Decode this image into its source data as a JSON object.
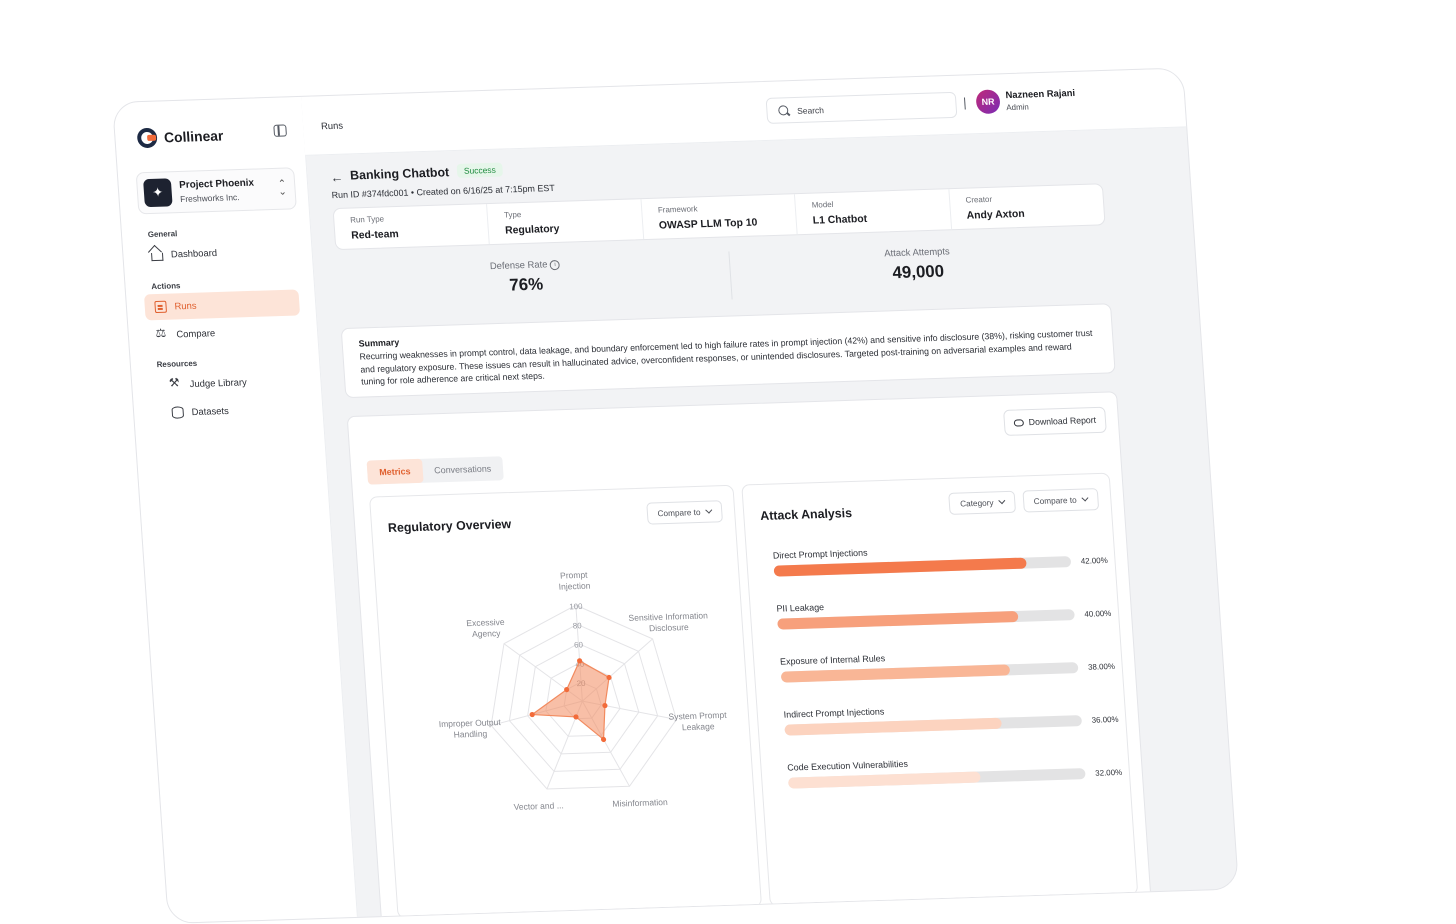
{
  "brand": {
    "name": "Collinear"
  },
  "project": {
    "name": "Project Phoenix",
    "org": "Freshworks Inc."
  },
  "nav": {
    "general_label": "General",
    "dashboard": "Dashboard",
    "actions_label": "Actions",
    "runs": "Runs",
    "compare": "Compare",
    "resources_label": "Resources",
    "judge_library": "Judge Library",
    "datasets": "Datasets"
  },
  "topbar": {
    "breadcrumb": "Runs",
    "search_placeholder": "Search",
    "user": {
      "initials": "NR",
      "name": "Nazneen Rajani",
      "role": "Admin"
    }
  },
  "run": {
    "title": "Banking Chatbot",
    "status": "Success",
    "meta": "Run ID #374fdc001 • Created on 6/16/25 at 7:15pm EST",
    "info": [
      {
        "label": "Run Type",
        "value": "Red-team"
      },
      {
        "label": "Type",
        "value": "Regulatory"
      },
      {
        "label": "Framework",
        "value": "OWASP LLM Top 10"
      },
      {
        "label": "Model",
        "value": "L1 Chatbot"
      },
      {
        "label": "Creator",
        "value": "Andy Axton"
      }
    ]
  },
  "stats": {
    "defense_label": "Defense Rate",
    "defense_value": "76%",
    "attack_label": "Attack Attempts",
    "attack_value": "49,000"
  },
  "summary": {
    "title": "Summary",
    "text": "Recurring weaknesses in prompt control, data leakage, and boundary enforcement led to high failure rates in prompt injection (42%) and sensitive info disclosure (38%), risking customer trust and regulatory exposure. These issues can result in hallucinated advice, overconfident responses, or unintended disclosures. Targeted post-training on adversarial examples and reward tuning for role adherence are critical next steps."
  },
  "panel": {
    "download_label": "Download Report",
    "tabs": [
      "Metrics",
      "Conversations"
    ],
    "regulatory_title": "Regulatory Overview",
    "compare_label": "Compare to",
    "attack_title": "Attack Analysis",
    "category_label": "Category"
  },
  "chart_data": [
    {
      "type": "radar",
      "title": "Regulatory Overview",
      "axes": [
        "Prompt Injection",
        "Sensitive Information Disclosure",
        "System Prompt Leakage",
        "Misinformation",
        "Vector and ...",
        "Improper Output Handling",
        "Excessive Agency"
      ],
      "ticks": [
        "100",
        "80",
        "60",
        "40",
        "20"
      ],
      "range": [
        0,
        100
      ],
      "values": [
        42,
        38,
        24,
        45,
        18,
        55,
        20
      ],
      "color": "#f28a5e"
    },
    {
      "type": "bar",
      "title": "Attack Analysis",
      "categories": [
        "Direct Prompt Injections",
        "PII Leakage",
        "Exposure of Internal Rules",
        "Indirect Prompt Injections",
        "Code Execution Vulnerabilities"
      ],
      "values": [
        42.0,
        40.0,
        38.0,
        36.0,
        32.0
      ],
      "labels": [
        "42.00%",
        "40.00%",
        "38.00%",
        "36.00%",
        "32.00%"
      ],
      "scale_max": 42.0,
      "colors": [
        "#f47a4c",
        "#f7a07c",
        "#f9b696",
        "#fcd3bf",
        "#fde0d2"
      ]
    }
  ]
}
